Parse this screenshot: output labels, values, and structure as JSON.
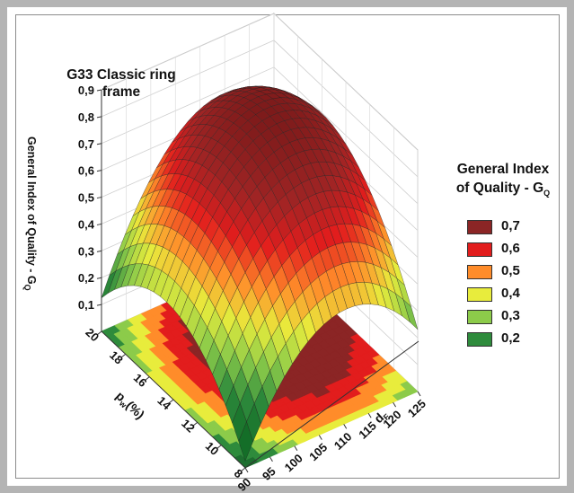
{
  "chart_data": {
    "type": "surface3d",
    "title": "G33 Classic ring frame",
    "zlabel": "General Index of Quality - G",
    "zlabel_subscript": "Q",
    "xlabel": "p",
    "xlabel_subscript": "w",
    "xlabel_unit": "(%)",
    "ylabel": "d",
    "ylabel_subscript": "F",
    "x_ticks": [
      "8",
      "10",
      "12",
      "14",
      "16",
      "18",
      "20"
    ],
    "y_ticks": [
      "90",
      "95",
      "100",
      "105",
      "110",
      "115",
      "120",
      "125"
    ],
    "z_ticks": [
      "0,1",
      "0,2",
      "0,3",
      "0,4",
      "0,5",
      "0,6",
      "0,7",
      "0,8",
      "0,9"
    ],
    "xlim": [
      8,
      20
    ],
    "ylim": [
      90,
      125
    ],
    "zlim": [
      0,
      0.9
    ],
    "surface_points": [
      {
        "p_w": 20,
        "d_F": 90,
        "G_Q": 0.31
      },
      {
        "p_w": 8,
        "d_F": 90,
        "G_Q": 0.14
      },
      {
        "p_w": 8,
        "d_F": 125,
        "G_Q": 0.27
      },
      {
        "p_w": 20,
        "d_F": 125,
        "G_Q": 0.47
      },
      {
        "p_w": 15,
        "d_F": 112,
        "G_Q": 0.83
      }
    ],
    "legend": {
      "title_line1": "General Index",
      "title_line2": "of Quality - G",
      "title_subscript": "Q",
      "position": "right",
      "entries": [
        {
          "label": "0,7",
          "color": "#8b2525"
        },
        {
          "label": "0,6",
          "color": "#e21d1d"
        },
        {
          "label": "0,5",
          "color": "#ff8c2a"
        },
        {
          "label": "0,4",
          "color": "#e8ec3c"
        },
        {
          "label": "0,3",
          "color": "#8ccb4a"
        },
        {
          "label": "0,2",
          "color": "#2e8b3c"
        }
      ]
    },
    "grid": true
  }
}
